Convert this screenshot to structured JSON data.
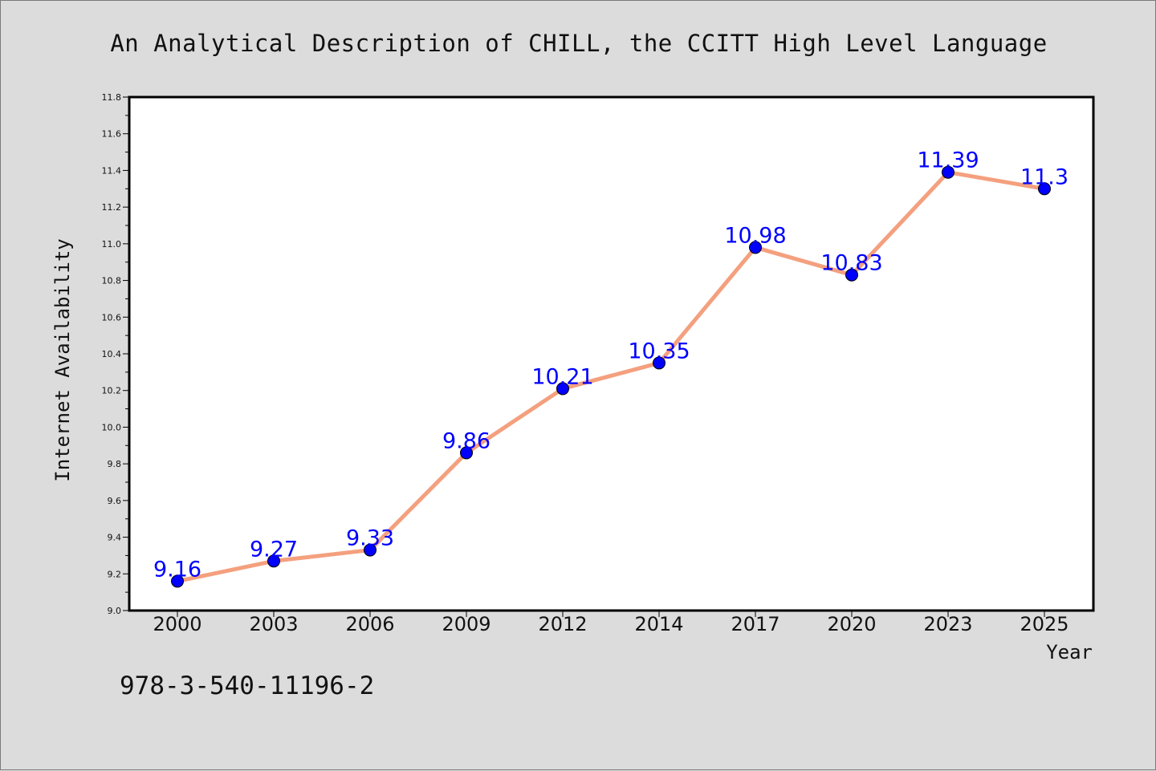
{
  "page": {
    "background": "#dcdcdc",
    "footer_text": "978-3-540-11196-2"
  },
  "chart_data": {
    "type": "line",
    "title": "An Analytical Description of CHILL, the CCITT High Level Language",
    "xlabel": "Year",
    "ylabel": "Internet Availability",
    "categories": [
      "2000",
      "2003",
      "2006",
      "2009",
      "2012",
      "2014",
      "2017",
      "2020",
      "2023",
      "2025"
    ],
    "series": [
      {
        "values": [
          9.16,
          9.27,
          9.33,
          9.86,
          10.21,
          10.35,
          10.98,
          10.83,
          11.39,
          11.3
        ],
        "data_labels": [
          "9.16",
          "9.27",
          "9.33",
          "9.86",
          "10.21",
          "10.35",
          "10.98",
          "10.83",
          "11.39",
          "11.3"
        ],
        "line_color": "#f4a07e",
        "marker_color": "#0000ff",
        "label_color": "#0000ff"
      }
    ],
    "ylim": [
      9.0,
      11.8
    ],
    "y_ticks": [
      "9.0",
      "9.2",
      "9.4",
      "9.6",
      "9.8",
      "10.0",
      "10.2",
      "10.4",
      "10.6",
      "10.8",
      "11.0",
      "11.2",
      "11.4",
      "11.6",
      "11.8"
    ],
    "grid": false,
    "legend": "none",
    "plot_background": "#ffffff"
  }
}
